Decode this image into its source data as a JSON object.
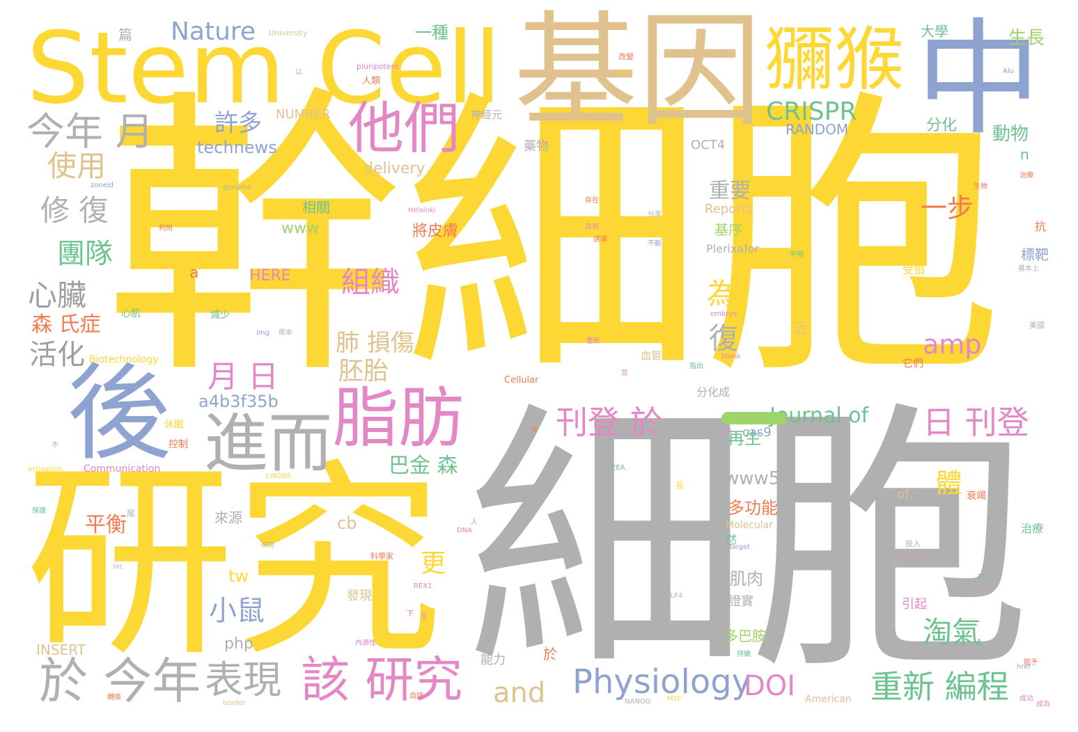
{
  "cloud": {
    "big": {
      "xibao_yellow": "幹細胞",
      "xibao_gray": "細胞",
      "jiyin": "基因",
      "yanjiu": "研究",
      "zhong": "中",
      "hou": "後",
      "stem_cell": "Stem Cell",
      "mihou": "獼猴",
      "tamen": "他們",
      "zhifang": "脂肪",
      "jiner": "進而",
      "jinnian_yue": "今年 月",
      "yu_jinnian": "於 今年",
      "biaoxian": "表現",
      "gai_yanjiu": "該 研究",
      "physiology": "Physiology",
      "doi": "DOI",
      "chongxin_biancheng": "重新 編程",
      "ri_kandeng": "日 刊登",
      "kandeng_yu": "刊登 於",
      "crispr": "CRISPR",
      "nature": "Nature",
      "xiufu": "修 復",
      "shiyong": "使用",
      "xuduo": "許多",
      "tuandui": "團隊",
      "xinzang": "心臟",
      "zuzhi": "組織",
      "huohua": "活化",
      "senshizheng": "森 氏症",
      "yue_ri": "月 日",
      "fei_sunshang": "肺 損傷",
      "peitai": "胚胎",
      "wei": "為",
      "fu": "復",
      "amp": "amp",
      "yibu": "一步",
      "zhongyao": "重要",
      "taoqi": "淘氣",
      "xiaoshu": "小鼠",
      "and": "and",
      "journal_of": "Journal of",
      "gen": "更",
      "ti": "體",
      "pingheng": "平衡",
      "bajinsen": "巴金 森"
    },
    "medium": {
      "technews": "technews",
      "delivery": "delivery",
      "www": "www",
      "www5": "www5",
      "a4b3f35b": "a4b3f35b",
      "yizhong": "一種",
      "daxue": "大學",
      "shengzhang": "生長",
      "dongwu": "動物",
      "fenhua": "分化",
      "random": "RANDOM",
      "oct4": "OCT4",
      "yaowu": "藥物",
      "number": "NUMBER",
      "xiangguan": "相關",
      "jiangpifu": "將皮膚",
      "jixu": "基序",
      "reports": "Reports",
      "plerixafor": "Plerixafor",
      "here": "HERE",
      "a": "a",
      "zaisheng": "再生",
      "duogongneng": "多功能",
      "cas9": "cas9",
      "tw": "tw",
      "cb": "cb",
      "php": "php",
      "insert": "INSERT",
      "laiyuan": "來源",
      "jirou": "肌肉",
      "zhengshi": "證實",
      "faxian": "發現",
      "nengli": "能力",
      "duobaan": "多巴胺",
      "of": "of",
      "molecular": "Molecular",
      "american": "American",
      "biotechnology": "Biotechnology",
      "communication": "Communication",
      "cellular": "Cellular",
      "fenhuacheng": "分化成",
      "n": "n",
      "lung": "Lung",
      "biaoba": "標靶",
      "shoushang": "受損",
      "jin": "近",
      "ran": "然",
      "yinqi": "引起",
      "yu2": "於",
      "pian": "篇",
      "shenjingyuan": "神經元",
      "renlei": "人類",
      "jianshao": "減少",
      "xinji": "心肌",
      "kongzhi": "控制",
      "xiumian": "休眠",
      "university": "University",
      "pluripotent": "pluripotent",
      "kang": "抗",
      "zhiliao": "治療",
      "tamen2": "它們",
      "xueguan": "血管",
      "genome": "genome",
      "zoneid": "zoneid",
      "helsinki": "Helsinki",
      "embryo": "embryo",
      "blank": "blank",
      "img": "img",
      "alu": "Alu",
      "aw": "aw",
      "sox2": "SOX2",
      "rex1": "REX1",
      "dna": "DNA",
      "target": "Target",
      "klf4": "KLF4",
      "nanog": "NANOG",
      "myc": "MYC",
      "href": "href",
      "border": "border",
      "src": "src",
      "activation": "activation",
      "cell": "Cell",
      "eea": "EEA",
      "lin28a": "LIN28A",
      "jiben": "基本上",
      "meiguo": "美國",
      "tou_ru": "投入",
      "shuaijie": "衰竭",
      "chenggong": "成功",
      "kexuejia": "科學家",
      "gaibian": "改變",
      "quanbu": "不斷",
      "bu": "不",
      "butong": "不同",
      "chongxin": "重新",
      "xuexibao": "血球",
      "neiyuanxing": "內源性",
      "fenxiang": "分享",
      "cunzai": "存在",
      "juyou": "具有",
      "zhuyou": "誘導",
      "chixu": "持續",
      "liyong": "利用",
      "zhuanhuan": "轉換",
      "shengwu": "生物",
      "baohu": "保護",
      "pingsi": "平時",
      "yuanben": "原本",
      "zhichu": "指出",
      "chengwei": "成為",
      "fuyu": "賦予",
      "zhiliao2": "治療",
      "ke": "可",
      "ren": "人",
      "wei2": "尾",
      "chang": "長",
      "bing": "並",
      "sheng": "生",
      "wu": "毋",
      "xia": "下",
      "yi": "以"
    }
  },
  "colors": {
    "yellow": "#fdd835",
    "gray": "#b0b0b0",
    "blue": "#8fa3d1",
    "tan": "#e0c28f",
    "pink": "#e487c7",
    "green": "#6cc38f",
    "orange": "#f07b52",
    "lime": "#9fd46b"
  }
}
